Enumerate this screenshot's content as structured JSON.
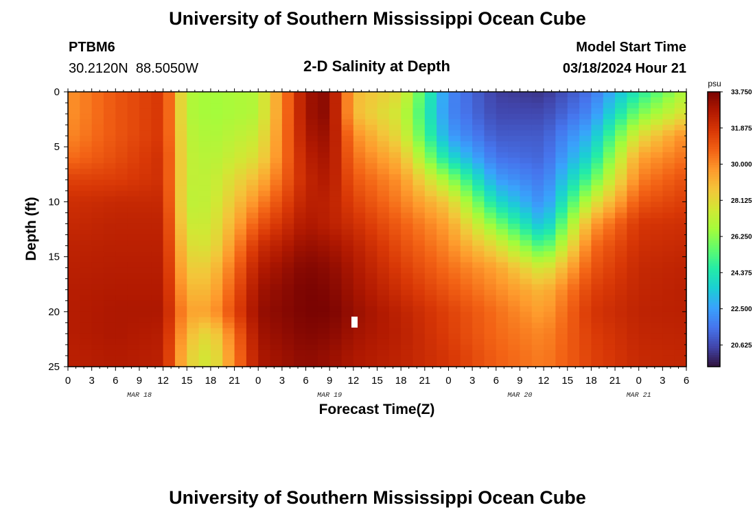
{
  "page": {
    "title": "University of Southern Mississippi Ocean Cube",
    "footer_title": "University of Southern Mississippi Ocean Cube",
    "station_id": "PTBM6",
    "station_coords": "30.2120N  88.5050W",
    "model_start_label": "Model Start Time",
    "model_start_value": "03/18/2024 Hour 21"
  },
  "chart_data": {
    "type": "heatmap",
    "title": "2-D Salinity at Depth",
    "xlabel": "Forecast Time(Z)",
    "ylabel": "Depth (ft)",
    "x_start": "03/18/2024 00Z",
    "x_step_hours": 3,
    "x_tick_labels": [
      "0",
      "3",
      "6",
      "9",
      "12",
      "15",
      "18",
      "21",
      "0",
      "3",
      "6",
      "9",
      "12",
      "15",
      "18",
      "21",
      "0",
      "3",
      "6",
      "9",
      "12",
      "15",
      "18",
      "21",
      "0",
      "3",
      "6"
    ],
    "day_labels": [
      {
        "label": "MAR 18",
        "hour": 9
      },
      {
        "label": "MAR 19",
        "hour": 33
      },
      {
        "label": "MAR 20",
        "hour": 57
      },
      {
        "label": "MAR 21",
        "hour": 72
      }
    ],
    "xlim_hours": [
      0,
      78
    ],
    "y_ticks": [
      0,
      5,
      10,
      15,
      20,
      25
    ],
    "ylim": [
      0,
      25
    ],
    "y_inverted": true,
    "colorbar": {
      "unit": "psu",
      "min": 19.5,
      "max": 33.75,
      "tick_labels": [
        "33.750",
        "31.875",
        "30.000",
        "28.125",
        "26.250",
        "24.375",
        "22.500",
        "20.625"
      ],
      "colormap": [
        "#30123b",
        "#4145ab",
        "#4675ed",
        "#39a2fc",
        "#1bcfd4",
        "#24eca6",
        "#61fc6c",
        "#a4fc3b",
        "#d1e834",
        "#f3c63a",
        "#fe9b2d",
        "#f36315",
        "#d93806",
        "#b11901",
        "#7a0402"
      ]
    },
    "grid_rows": [
      "depth (ft)",
      "0",
      "2",
      "4",
      "6",
      "8",
      "10",
      "12",
      "14",
      "16",
      "18",
      "20",
      "22",
      "24"
    ],
    "grid_cols_hours": [
      0,
      6,
      12,
      15,
      18,
      24,
      30,
      33,
      36,
      42,
      48,
      54,
      60,
      66,
      72,
      78
    ],
    "salinity": [
      [
        29.8,
        31.0,
        31.8,
        27.0,
        26.6,
        27.0,
        33.0,
        33.5,
        29.0,
        28.0,
        22.0,
        20.4,
        20.2,
        21.5,
        24.5,
        27.0
      ],
      [
        29.8,
        31.0,
        31.8,
        27.0,
        26.6,
        27.0,
        33.0,
        33.5,
        29.0,
        27.5,
        22.0,
        20.6,
        20.6,
        22.0,
        26.0,
        28.0
      ],
      [
        30.0,
        31.0,
        31.8,
        27.2,
        26.8,
        27.5,
        32.8,
        33.2,
        30.0,
        28.0,
        22.5,
        21.0,
        21.0,
        23.0,
        28.0,
        30.0
      ],
      [
        30.5,
        31.2,
        32.0,
        27.3,
        27.0,
        28.0,
        32.5,
        33.0,
        30.5,
        29.0,
        24.0,
        21.5,
        21.2,
        24.0,
        29.5,
        30.5
      ],
      [
        31.5,
        31.6,
        32.0,
        27.3,
        27.2,
        29.0,
        32.3,
        32.8,
        31.0,
        29.8,
        26.5,
        22.5,
        21.6,
        25.5,
        30.2,
        31.2
      ],
      [
        32.0,
        32.2,
        32.2,
        27.2,
        27.3,
        30.0,
        32.5,
        32.5,
        31.5,
        30.2,
        28.5,
        24.0,
        22.0,
        27.5,
        31.0,
        31.6
      ],
      [
        32.2,
        32.4,
        32.4,
        27.5,
        27.5,
        31.0,
        32.8,
        32.5,
        32.0,
        30.8,
        29.5,
        26.0,
        23.0,
        29.5,
        31.8,
        32.0
      ],
      [
        32.4,
        32.5,
        32.5,
        28.0,
        27.8,
        32.0,
        33.2,
        33.0,
        32.5,
        31.2,
        30.0,
        28.0,
        25.0,
        30.5,
        32.0,
        32.2
      ],
      [
        32.5,
        32.6,
        32.6,
        28.5,
        28.5,
        32.6,
        33.6,
        33.4,
        32.8,
        31.6,
        30.5,
        29.5,
        27.5,
        31.0,
        32.2,
        32.4
      ],
      [
        32.6,
        32.7,
        32.7,
        29.0,
        29.0,
        33.0,
        33.75,
        33.6,
        33.0,
        32.0,
        31.0,
        30.0,
        29.0,
        31.5,
        32.3,
        32.5
      ],
      [
        32.6,
        32.8,
        32.8,
        29.5,
        29.5,
        33.2,
        33.75,
        33.75,
        33.2,
        32.4,
        31.5,
        30.5,
        29.5,
        31.8,
        32.4,
        32.5
      ],
      [
        32.6,
        32.8,
        32.6,
        29.0,
        28.0,
        33.0,
        33.6,
        33.5,
        33.0,
        32.5,
        31.6,
        30.6,
        30.0,
        31.6,
        32.3,
        32.4
      ],
      [
        32.5,
        32.7,
        32.5,
        28.5,
        27.5,
        32.8,
        33.4,
        33.2,
        32.8,
        32.4,
        31.8,
        30.8,
        30.2,
        31.5,
        32.2,
        32.3
      ]
    ],
    "legend": "right"
  }
}
